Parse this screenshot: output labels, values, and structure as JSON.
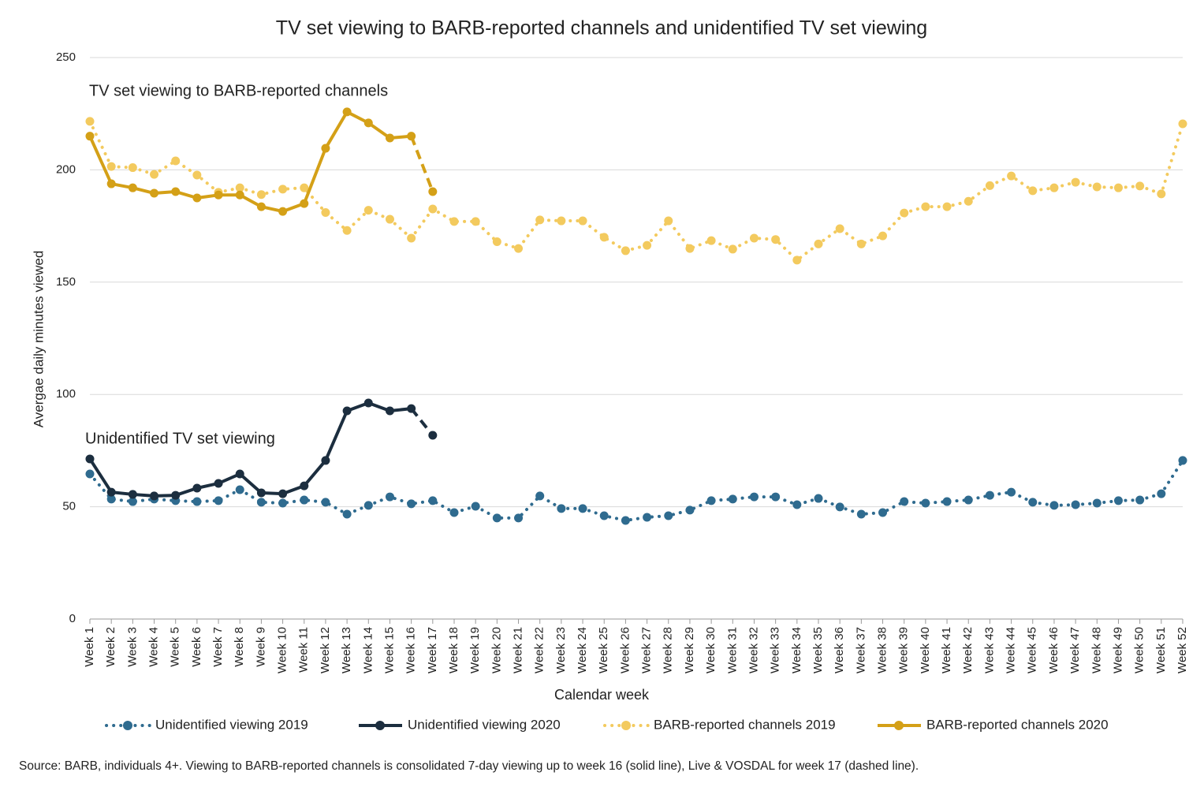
{
  "chart_data": {
    "type": "line",
    "title": "TV set viewing to BARB-reported channels and unidentified TV set viewing",
    "x_label": "Calendar week",
    "y_label": "Avergae daily minutes viewed",
    "annotations": [
      "TV set viewing to BARB-reported channels",
      "Unidentified TV set viewing"
    ],
    "source": "Source: BARB, individuals 4+. Viewing to BARB-reported channels is consolidated 7-day viewing up to week 16 (solid line), Live & VOSDAL for week 17 (dashed line).",
    "categories": [
      "Week 1",
      "Week 2",
      "Week 3",
      "Week 4",
      "Week 5",
      "Week 6",
      "Week 7",
      "Week 8",
      "Week 9",
      "Week 10",
      "Week 11",
      "Week 12",
      "Week 13",
      "Week 14",
      "Week 15",
      "Week 16",
      "Week 17",
      "Week 18",
      "Week 19",
      "Week 20",
      "Week 21",
      "Week 22",
      "Week 23",
      "Week 24",
      "Week 25",
      "Week 26",
      "Week 27",
      "Week 28",
      "Week 29",
      "Week 30",
      "Week 31",
      "Week 32",
      "Week 33",
      "Week 34",
      "Week 35",
      "Week 36",
      "Week 37",
      "Week 38",
      "Week 39",
      "Week 40",
      "Week 41",
      "Week 42",
      "Week 43",
      "Week 44",
      "Week 45",
      "Week 46",
      "Week 47",
      "Week 48",
      "Week 49",
      "Week 50",
      "Week 51",
      "Week 52"
    ],
    "ylim": [
      0,
      250
    ],
    "yticks": [
      0,
      50,
      100,
      150,
      200,
      250
    ],
    "grid": true,
    "legend": "bottom",
    "series": [
      {
        "name": "Unidentified viewing 2019",
        "color": "#2f6b8f",
        "style": "dotted",
        "values": [
          64.6,
          53.4,
          52.3,
          53.4,
          52.7,
          52.3,
          52.7,
          57.6,
          52,
          51.6,
          53,
          52,
          46.7,
          50.6,
          54.4,
          51.3,
          52.7,
          47.4,
          50.2,
          45,
          45,
          54.8,
          49.2,
          49.2,
          46,
          43.9,
          45.3,
          46,
          48.5,
          52.7,
          53.4,
          54.4,
          54.4,
          50.9,
          53.7,
          49.9,
          46.7,
          47.4,
          52.3,
          51.6,
          52.3,
          53,
          55.1,
          56.5,
          52,
          50.6,
          50.9,
          51.6,
          52.7,
          53,
          55.8,
          70.6
        ]
      },
      {
        "name": "Unidentified viewing 2020",
        "color": "#1c2e3f",
        "style": "solid",
        "dashed_last_segment": true,
        "values": [
          71.3,
          56.5,
          55.5,
          54.8,
          55.1,
          58.3,
          60.4,
          64.6,
          56.2,
          55.8,
          59.3,
          70.6,
          92.7,
          96.2,
          92.7,
          93.7,
          81.8,
          null,
          null,
          null,
          null,
          null,
          null,
          null,
          null,
          null,
          null,
          null,
          null,
          null,
          null,
          null,
          null,
          null,
          null,
          null,
          null,
          null,
          null,
          null,
          null,
          null,
          null,
          null,
          null,
          null,
          null,
          null,
          null,
          null,
          null,
          null
        ]
      },
      {
        "name": "BARB-reported channels 2019",
        "color": "#f3ca5e",
        "style": "dotted",
        "values": [
          221.6,
          201.5,
          201,
          198,
          204,
          197.7,
          190,
          192,
          189,
          191.4,
          192,
          181,
          173,
          182,
          178,
          169.6,
          182.6,
          177,
          177,
          168,
          165,
          177.7,
          177.3,
          177.3,
          170,
          164,
          166.4,
          177.3,
          165,
          168.5,
          164.7,
          169.6,
          169,
          159.8,
          167,
          173.8,
          167,
          170.6,
          180.8,
          183.6,
          183.6,
          186,
          193,
          197.3,
          190.7,
          192,
          194.5,
          192.4,
          192,
          192.8,
          189.3,
          220.5
        ]
      },
      {
        "name": "BARB-reported channels 2020",
        "color": "#d4a017",
        "style": "solid",
        "dashed_last_segment": true,
        "values": [
          215,
          193.8,
          192,
          189.6,
          190.3,
          187.5,
          188.8,
          188.8,
          183.6,
          181.5,
          185,
          209.6,
          225.8,
          220.9,
          214.2,
          215,
          190.3,
          null,
          null,
          null,
          null,
          null,
          null,
          null,
          null,
          null,
          null,
          null,
          null,
          null,
          null,
          null,
          null,
          null,
          null,
          null,
          null,
          null,
          null,
          null,
          null,
          null,
          null,
          null,
          null,
          null,
          null,
          null,
          null,
          null,
          null,
          null
        ]
      }
    ]
  }
}
